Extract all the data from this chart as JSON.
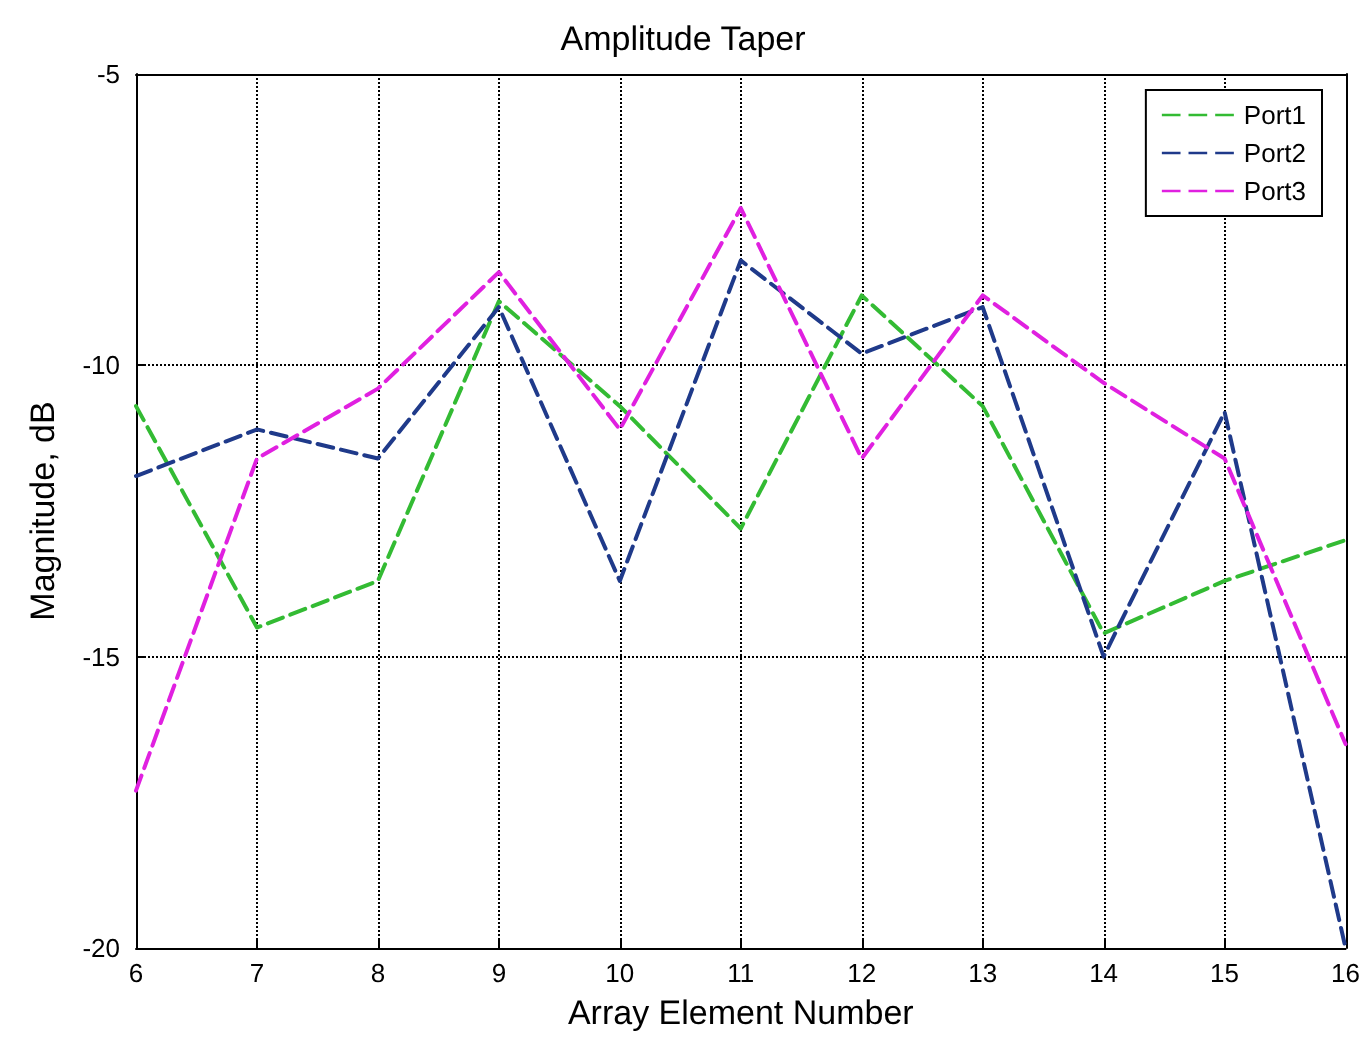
{
  "chart_data": {
    "type": "line",
    "title": "Amplitude Taper",
    "xlabel": "Array Element Number",
    "ylabel": "Magnitude, dB",
    "x": [
      6,
      7,
      8,
      9,
      10,
      11,
      12,
      13,
      14,
      15,
      16
    ],
    "series": [
      {
        "name": "Port1",
        "color": "#33bb33",
        "values": [
          -10.7,
          -14.5,
          -13.7,
          -8.9,
          -10.7,
          -12.8,
          -8.8,
          -10.7,
          -14.6,
          -13.7,
          -13.0
        ]
      },
      {
        "name": "Port2",
        "color": "#1f3a8a",
        "values": [
          -11.9,
          -11.1,
          -11.6,
          -9.0,
          -13.7,
          -8.2,
          -9.8,
          -9.0,
          -15.0,
          -10.8,
          -20.0
        ]
      },
      {
        "name": "Port3",
        "color": "#e020e0",
        "values": [
          -17.3,
          -11.6,
          -10.4,
          -8.4,
          -11.1,
          -7.3,
          -11.6,
          -8.8,
          -10.3,
          -11.6,
          -16.5
        ]
      }
    ],
    "xlim": [
      6,
      16
    ],
    "xticks": [
      6,
      7,
      8,
      9,
      10,
      11,
      12,
      13,
      14,
      15,
      16
    ],
    "ylim": [
      -20,
      -5
    ],
    "yticks": [
      -20,
      -15,
      -10,
      -5
    ],
    "grid": true,
    "legend": "top right",
    "marker": "none",
    "line_style": "dashed"
  }
}
